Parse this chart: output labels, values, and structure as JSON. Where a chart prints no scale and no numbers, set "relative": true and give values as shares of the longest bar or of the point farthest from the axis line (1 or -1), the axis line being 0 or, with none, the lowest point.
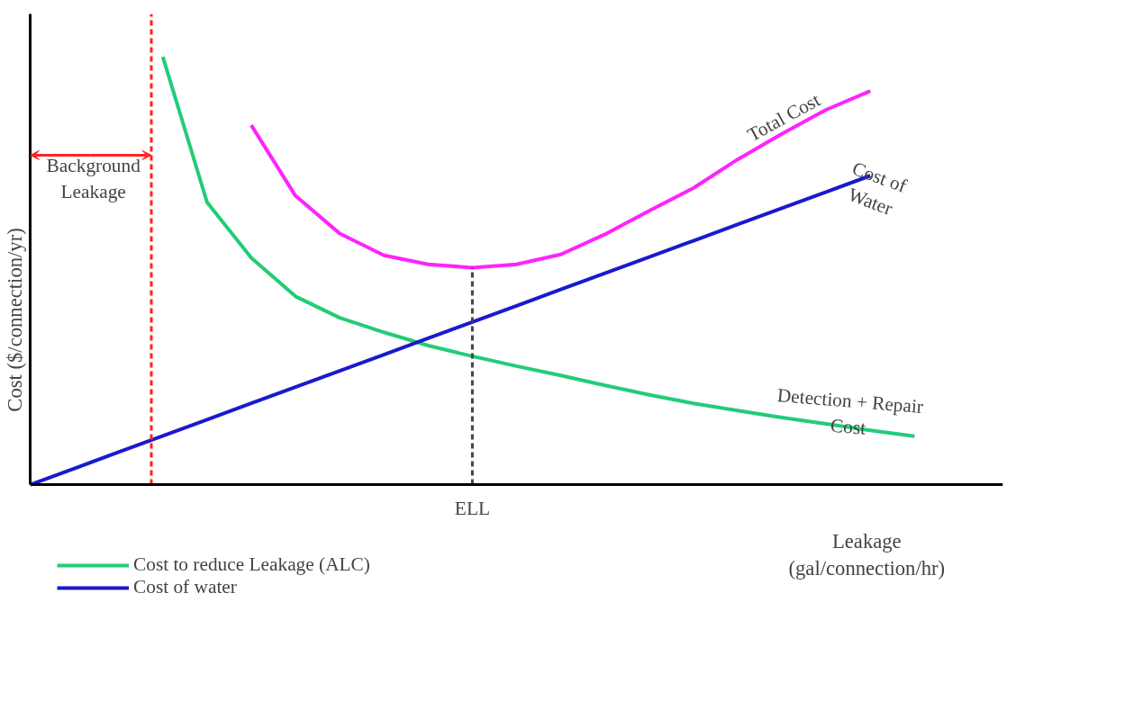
{
  "chart_data": {
    "type": "line",
    "relative": true,
    "ylabel": "Cost ($/connection/yr)",
    "xlabel": "Leakage\n(gal/connection/hr)",
    "legend": "bottom",
    "marker": "none",
    "line_style": "solid",
    "categories": [
      null,
      null,
      null,
      null,
      null,
      null,
      null,
      null,
      null,
      null,
      null,
      null,
      null,
      null,
      null,
      null,
      null,
      null,
      null,
      null,
      null
    ],
    "series": [
      {
        "name": "Cost to reduce Leakage (ALC)",
        "color": "#22cc77",
        "values": [
          null,
          null,
          null,
          1.0,
          0.66,
          0.53,
          0.44,
          0.39,
          0.356,
          0.325,
          0.3,
          0.277,
          0.255,
          0.232,
          0.21,
          0.19,
          0.173,
          0.157,
          0.142,
          0.127,
          0.113
        ]
      },
      {
        "name": "Cost of water",
        "color": "#1a1acc",
        "values": [
          0,
          0.038,
          0.076,
          0.114,
          0.152,
          0.19,
          0.228,
          0.266,
          0.304,
          0.342,
          0.38,
          0.418,
          0.456,
          0.494,
          0.532,
          0.57,
          0.608,
          0.646,
          0.684,
          0.722,
          null
        ]
      },
      {
        "color": "#ff22ff",
        "values": [
          null,
          null,
          null,
          null,
          null,
          0.84,
          0.675,
          0.587,
          0.536,
          0.515,
          0.507,
          0.515,
          0.538,
          0.585,
          0.64,
          0.693,
          0.76,
          0.82,
          0.876,
          0.92,
          null
        ]
      }
    ],
    "annotations": [
      "Background\nLeakage",
      "Total Cost",
      "Cost of\nWater",
      "Detection + Repair\nCost",
      "ELL"
    ]
  }
}
